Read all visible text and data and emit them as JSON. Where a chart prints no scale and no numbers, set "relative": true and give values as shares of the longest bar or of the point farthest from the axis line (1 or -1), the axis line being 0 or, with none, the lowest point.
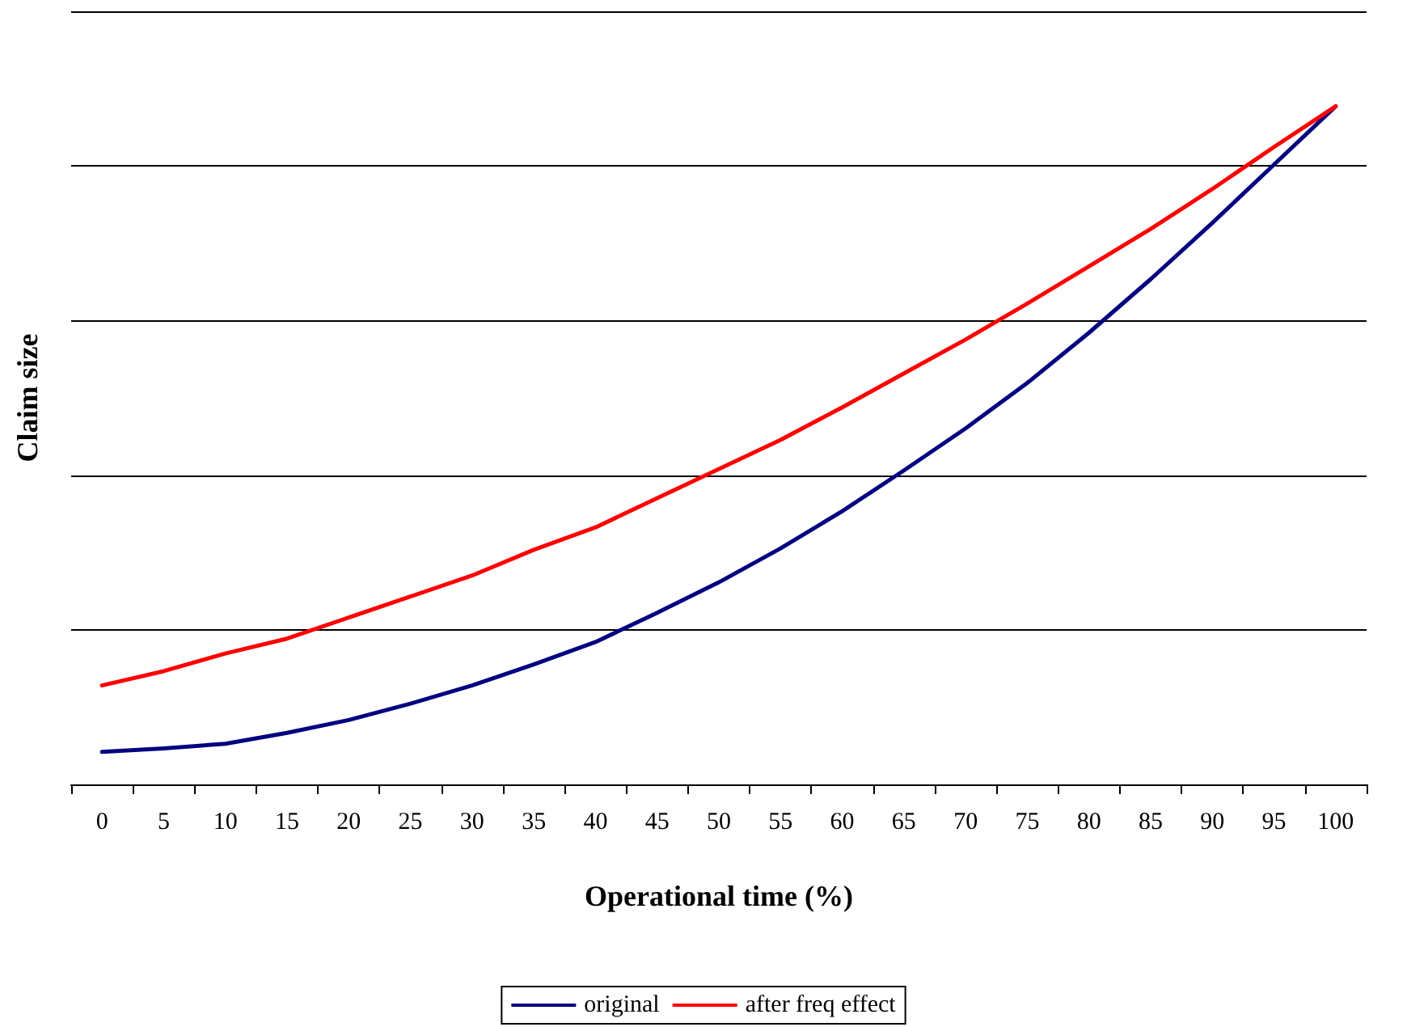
{
  "chart_data": {
    "type": "line",
    "xlabel": "Operational time (%)",
    "ylabel": "Claim size",
    "relative": true,
    "grid": "y",
    "legend": "bottom",
    "marker": "none",
    "line_style": "solid",
    "categories": [
      "0",
      "5",
      "10",
      "15",
      "20",
      "25",
      "30",
      "35",
      "40",
      "45",
      "50",
      "55",
      "60",
      "65",
      "70",
      "75",
      "80",
      "85",
      "90",
      "95",
      "100"
    ],
    "series": [
      {
        "name": "original",
        "color": "#000080",
        "values": [
          0.048,
          0.053,
          0.06,
          0.076,
          0.095,
          0.119,
          0.146,
          0.177,
          0.21,
          0.253,
          0.298,
          0.348,
          0.403,
          0.463,
          0.525,
          0.592,
          0.666,
          0.745,
          0.828,
          0.914,
          1
        ]
      },
      {
        "name": "after freq effect",
        "color": "#ff0000",
        "values": [
          0.146,
          0.167,
          0.193,
          0.215,
          0.246,
          0.277,
          0.308,
          0.346,
          0.379,
          0.422,
          0.465,
          0.508,
          0.556,
          0.606,
          0.656,
          0.709,
          0.764,
          0.819,
          0.878,
          0.94,
          1
        ]
      }
    ]
  }
}
